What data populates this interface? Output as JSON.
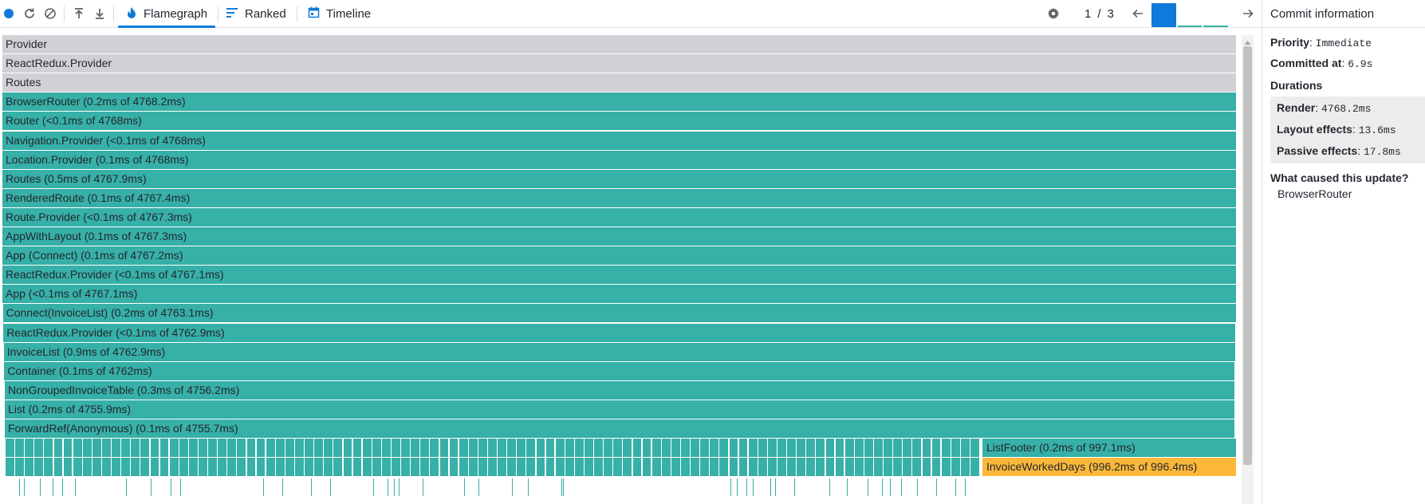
{
  "toolbar": {
    "tabs": [
      {
        "label": "Flamegraph",
        "icon": "flame-icon",
        "active": true
      },
      {
        "label": "Ranked",
        "icon": "ranked-icon",
        "active": false
      },
      {
        "label": "Timeline",
        "icon": "timeline-icon",
        "active": false
      }
    ],
    "commit_current": "1",
    "commit_separator": "/",
    "commit_total": "3",
    "commit_durations_ms": [
      4768.2,
      12.0,
      10.0
    ],
    "selected_commit": 1
  },
  "flamegraph": {
    "rows": [
      {
        "label": "Provider",
        "style": "gray"
      },
      {
        "label": "ReactRedux.Provider",
        "style": "gray"
      },
      {
        "label": "Routes",
        "style": "gray"
      },
      {
        "label": "BrowserRouter (0.2ms of 4768.2ms)",
        "style": "teal"
      },
      {
        "label": "Router (<0.1ms of 4768ms)",
        "style": "teal"
      },
      {
        "label": "Navigation.Provider (<0.1ms of 4768ms)",
        "style": "teal"
      },
      {
        "label": "Location.Provider (0.1ms of 4768ms)",
        "style": "teal"
      },
      {
        "label": "Routes (0.5ms of 4767.9ms)",
        "style": "teal"
      },
      {
        "label": "RenderedRoute (0.1ms of 4767.4ms)",
        "style": "teal"
      },
      {
        "label": "Route.Provider (<0.1ms of 4767.3ms)",
        "style": "teal"
      },
      {
        "label": "AppWithLayout (0.1ms of 4767.3ms)",
        "style": "teal"
      },
      {
        "label": "App (Connect) (0.1ms of 4767.2ms)",
        "style": "teal"
      },
      {
        "label": "ReactRedux.Provider (<0.1ms of 4767.1ms)",
        "style": "teal"
      },
      {
        "label": "App (<0.1ms of 4767.1ms)",
        "style": "teal"
      },
      {
        "label": "Connect(InvoiceList) (0.2ms of 4763.1ms)",
        "style": "teal"
      },
      {
        "label": "ReactRedux.Provider (<0.1ms of 4762.9ms)",
        "style": "teal"
      },
      {
        "label": "InvoiceList (0.9ms of 4762.9ms)",
        "style": "teal"
      },
      {
        "label": "Container (0.1ms of 4762ms)",
        "style": "teal"
      },
      {
        "label": "NonGroupedInvoiceTable (0.3ms of 4756.2ms)",
        "style": "teal"
      },
      {
        "label": "List (0.2ms of 4755.9ms)",
        "style": "teal"
      },
      {
        "label": "ForwardRef(Anonymous) (0.1ms of 4755.7ms)",
        "style": "teal"
      }
    ],
    "list_footer_label": "ListFooter (0.2ms of 997.1ms)",
    "worked_days_label": "InvoiceWorkedDays (996.2ms of 996.4ms)",
    "colors": {
      "gray": "#d1d1d5",
      "teal": "#37b0a7",
      "highlight": "#fdb83a",
      "accent": "#0f7ad9"
    }
  },
  "panel": {
    "title": "Commit information",
    "priority_label": "Priority",
    "priority_value": "Immediate",
    "committed_label": "Committed at",
    "committed_value": "6.9s",
    "durations_title": "Durations",
    "durations": [
      {
        "label": "Render",
        "value": "4768.2ms"
      },
      {
        "label": "Layout effects",
        "value": "13.6ms"
      },
      {
        "label": "Passive effects",
        "value": "17.8ms"
      }
    ],
    "cause_title": "What caused this update",
    "cause_items": [
      "BrowserRouter"
    ]
  }
}
